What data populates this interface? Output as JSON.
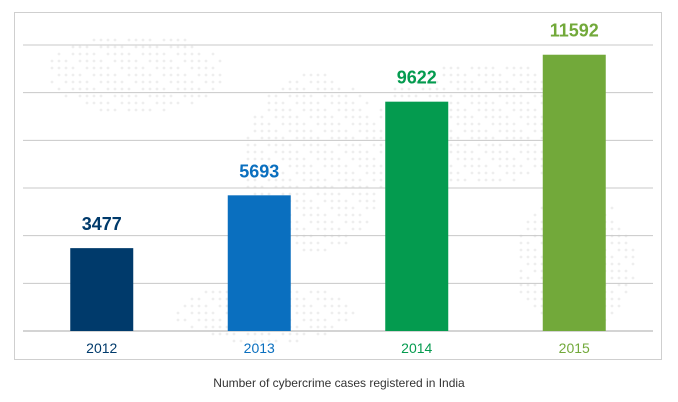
{
  "chart_data": {
    "type": "bar",
    "categories": [
      "2012",
      "2013",
      "2014",
      "2015"
    ],
    "values": [
      3477,
      5693,
      9622,
      11592
    ],
    "colors": [
      "#003a6b",
      "#0a6fbf",
      "#049b4f",
      "#72a93a"
    ],
    "ylim": [
      0,
      12000
    ],
    "grid": true,
    "title": "",
    "xlabel": "",
    "ylabel": ""
  },
  "caption": "Number of cybercrime cases registered in India"
}
